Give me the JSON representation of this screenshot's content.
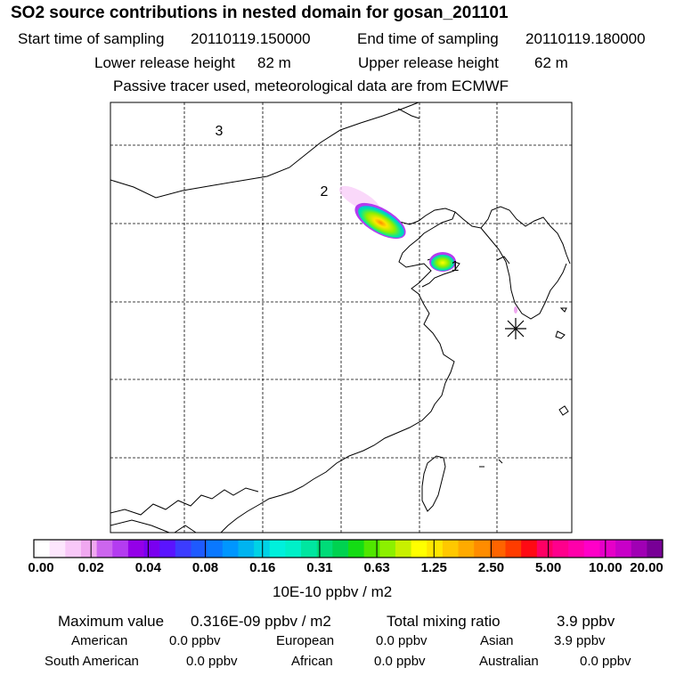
{
  "header": {
    "title": "SO2 source contributions in nested domain for gosan_201101",
    "start_label": "Start time of sampling",
    "start_value": "20110119.150000",
    "end_label": "End time of sampling",
    "end_value": "20110119.180000",
    "lower_label": "Lower release height",
    "lower_value": "82 m",
    "upper_label": "Upper release height",
    "upper_value": "62 m",
    "note": "Passive tracer used, meteorological data are from ECMWF"
  },
  "map": {
    "region_labels": [
      "3",
      "2",
      "1"
    ],
    "receptor_marker": "asterisk-icon"
  },
  "colorbar": {
    "ticks": [
      "0.00",
      "0.02",
      "0.04",
      "0.08",
      "0.16",
      "0.31",
      "0.63",
      "1.25",
      "2.50",
      "5.00",
      "10.00",
      "20.00"
    ],
    "unit": "10E-10 ppbv / m2",
    "colors": [
      "#ffffff",
      "#fde6fd",
      "#f8c8f8",
      "#f0a8f0",
      "#cc66ee",
      "#b43cf0",
      "#9400e8",
      "#7a00f0",
      "#5a14ff",
      "#3c3cff",
      "#1e5aff",
      "#0a78ff",
      "#0096ff",
      "#00b4f0",
      "#00d2e6",
      "#00f0dc",
      "#00f0c8",
      "#00e6a0",
      "#00dc78",
      "#00d250",
      "#14dc14",
      "#50e600",
      "#8cf000",
      "#c8f000",
      "#ffff00",
      "#ffe600",
      "#ffc800",
      "#ffaa00",
      "#ff8c00",
      "#ff6400",
      "#ff3c00",
      "#ff0a14",
      "#ff0064",
      "#ff008c",
      "#ff00aa",
      "#ff00c8",
      "#e600c8",
      "#c800c8",
      "#a000b4",
      "#780096"
    ]
  },
  "summary": {
    "max_label": "Maximum value",
    "max_value": "0.316E-09 ppbv / m2",
    "total_label": "Total mixing ratio",
    "total_value": "3.9 ppbv",
    "regions": [
      {
        "name": "American",
        "value": "0.0 ppbv"
      },
      {
        "name": "European",
        "value": "0.0 ppbv"
      },
      {
        "name": "Asian",
        "value": "3.9 ppbv"
      },
      {
        "name": "South American",
        "value": "0.0 ppbv"
      },
      {
        "name": "African",
        "value": "0.0 ppbv"
      },
      {
        "name": "Australian",
        "value": "0.0 ppbv"
      }
    ]
  }
}
